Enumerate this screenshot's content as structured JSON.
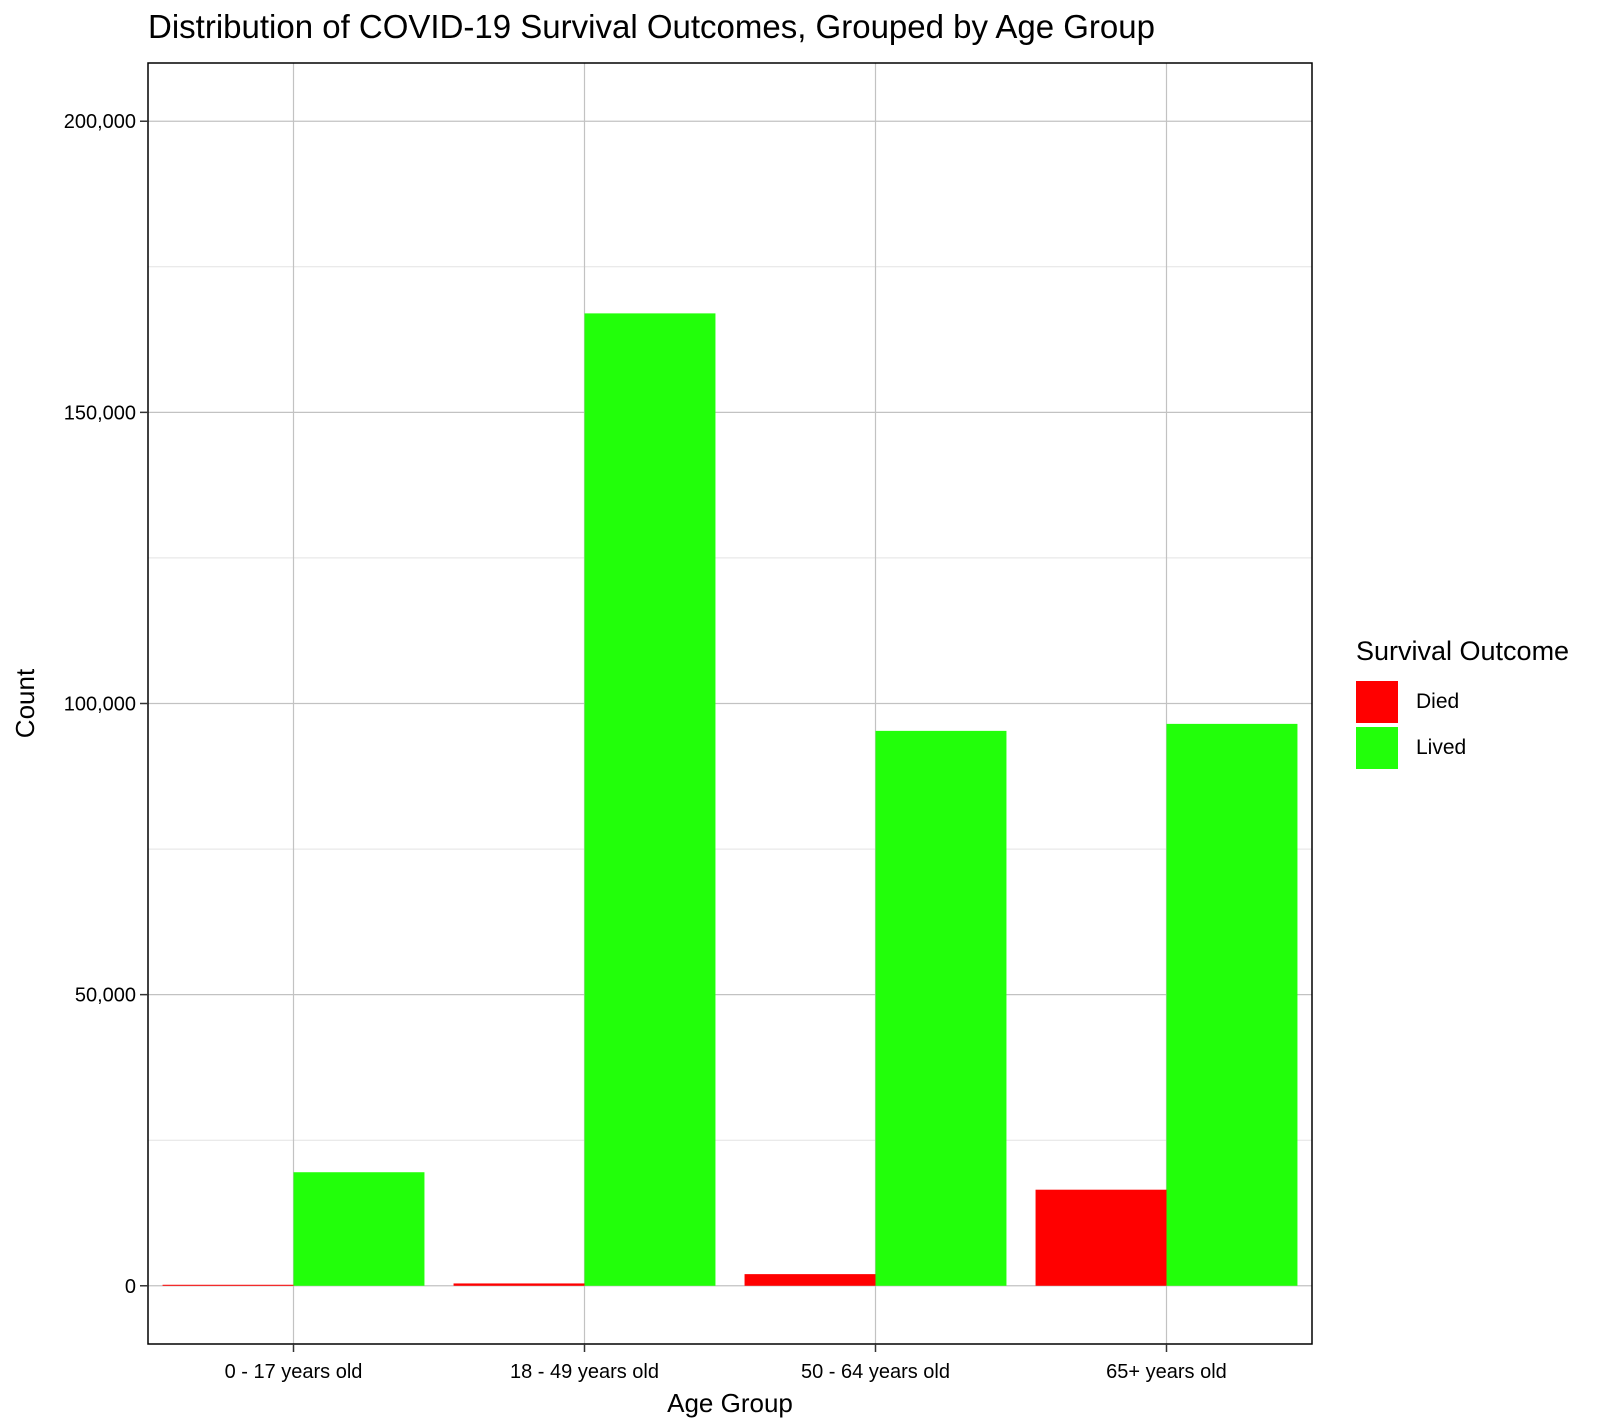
{
  "chart_data": {
    "type": "bar",
    "title": "Distribution of COVID-19 Survival Outcomes, Grouped by Age Group",
    "xlabel": "Age Group",
    "ylabel": "Count",
    "categories": [
      "0 - 17 years old",
      "18 - 49 years old",
      "50 - 64 years old",
      "65+ years old"
    ],
    "series": [
      {
        "name": "Died",
        "color": "#ff0000",
        "values": [
          0,
          400,
          2000,
          16500
        ]
      },
      {
        "name": "Lived",
        "color": "#22ff0a",
        "values": [
          19500,
          167000,
          95300,
          96500
        ]
      }
    ],
    "ylim": [
      -10000,
      210000
    ],
    "yticks": [
      0,
      50000,
      100000,
      150000,
      200000
    ],
    "ytick_labels": [
      "0",
      "50,000",
      "100,000",
      "150,000",
      "200,000"
    ],
    "grid": true,
    "legend": {
      "title": "Survival Outcome",
      "placement": "right"
    }
  }
}
